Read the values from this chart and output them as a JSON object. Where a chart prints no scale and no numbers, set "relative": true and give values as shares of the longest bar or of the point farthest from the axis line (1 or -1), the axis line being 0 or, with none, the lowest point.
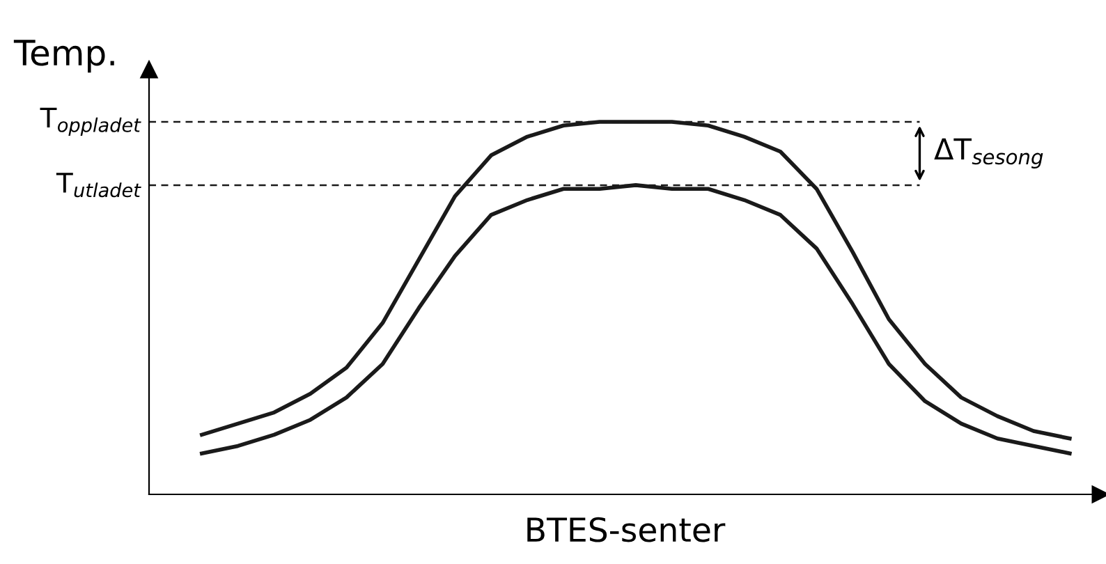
{
  "chart_data": {
    "type": "line",
    "relative": true,
    "ylabel": "Temp.",
    "xlabel": "BTES-senter",
    "categories": [
      null,
      null,
      null,
      null,
      null,
      null,
      null,
      null,
      null,
      null,
      null,
      null,
      null,
      null,
      null,
      null,
      null,
      null,
      null,
      null,
      null,
      null,
      null,
      null,
      null
    ],
    "series": [
      {
        "color": "#1a1a1a",
        "values": [
          0.16,
          0.19,
          0.22,
          0.27,
          0.34,
          0.46,
          0.63,
          0.8,
          0.91,
          0.96,
          0.99,
          1.0,
          1.0,
          1.0,
          0.99,
          0.96,
          0.92,
          0.82,
          0.65,
          0.47,
          0.35,
          0.26,
          0.21,
          0.17,
          0.15
        ]
      },
      {
        "color": "#1a1a1a",
        "values": [
          0.11,
          0.13,
          0.16,
          0.2,
          0.26,
          0.35,
          0.5,
          0.64,
          0.75,
          0.79,
          0.82,
          0.82,
          0.83,
          0.82,
          0.82,
          0.79,
          0.75,
          0.66,
          0.51,
          0.35,
          0.25,
          0.19,
          0.15,
          0.13,
          0.11
        ]
      }
    ],
    "ref_lines": [
      {
        "axis": "y",
        "value": 1.0,
        "label": "T$_{oppladet}$",
        "color": "#1a1a1a",
        "line_style": "dashed"
      },
      {
        "axis": "y",
        "value": 0.83,
        "label": "T$_{utladet}$",
        "color": "#1a1a1a",
        "line_style": "dashed"
      }
    ],
    "annotations": [
      "ΔT$_{sesong}$"
    ],
    "grid": false,
    "legend": false,
    "marker": "none",
    "line_style": "solid"
  }
}
